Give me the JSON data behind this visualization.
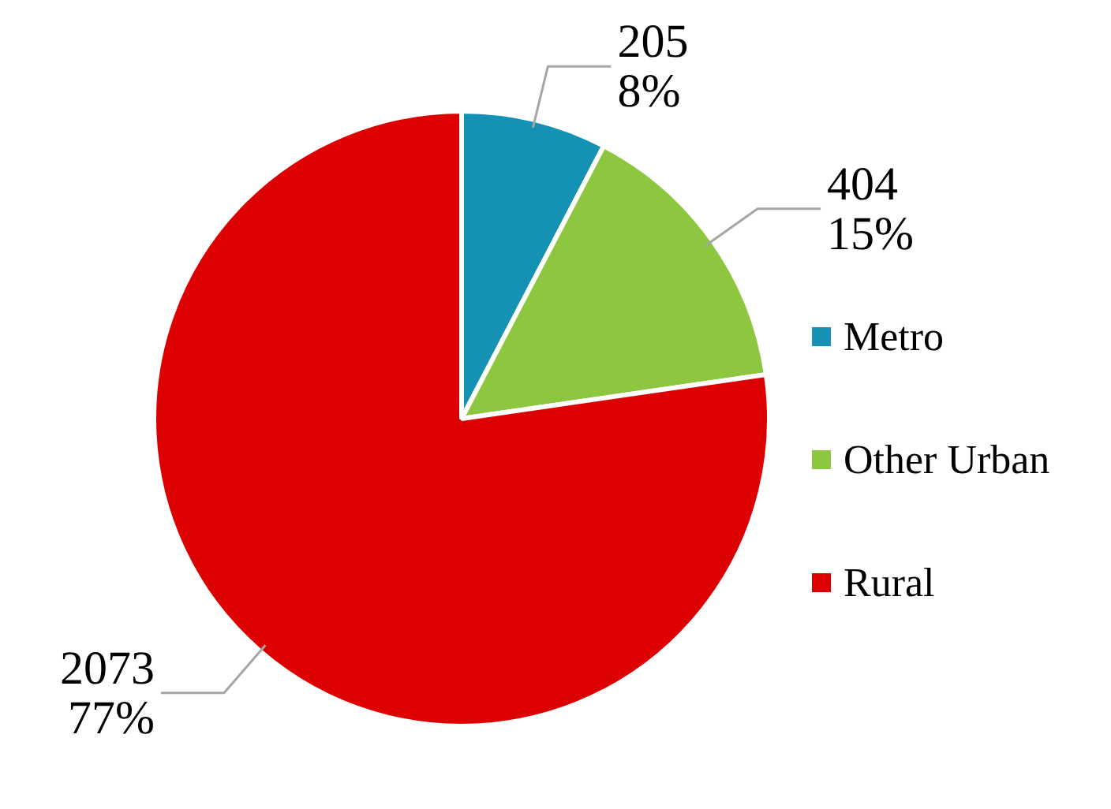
{
  "chart_data": {
    "type": "pie",
    "categories": [
      "Metro",
      "Other Urban",
      "Rural"
    ],
    "values": [
      205,
      404,
      2073
    ],
    "colors": [
      "#1591b4",
      "#8dc63f",
      "#dc0000"
    ],
    "value_labels": [
      "205\n8%",
      "404\n15%",
      "2073\n77%"
    ],
    "legend": "right"
  }
}
